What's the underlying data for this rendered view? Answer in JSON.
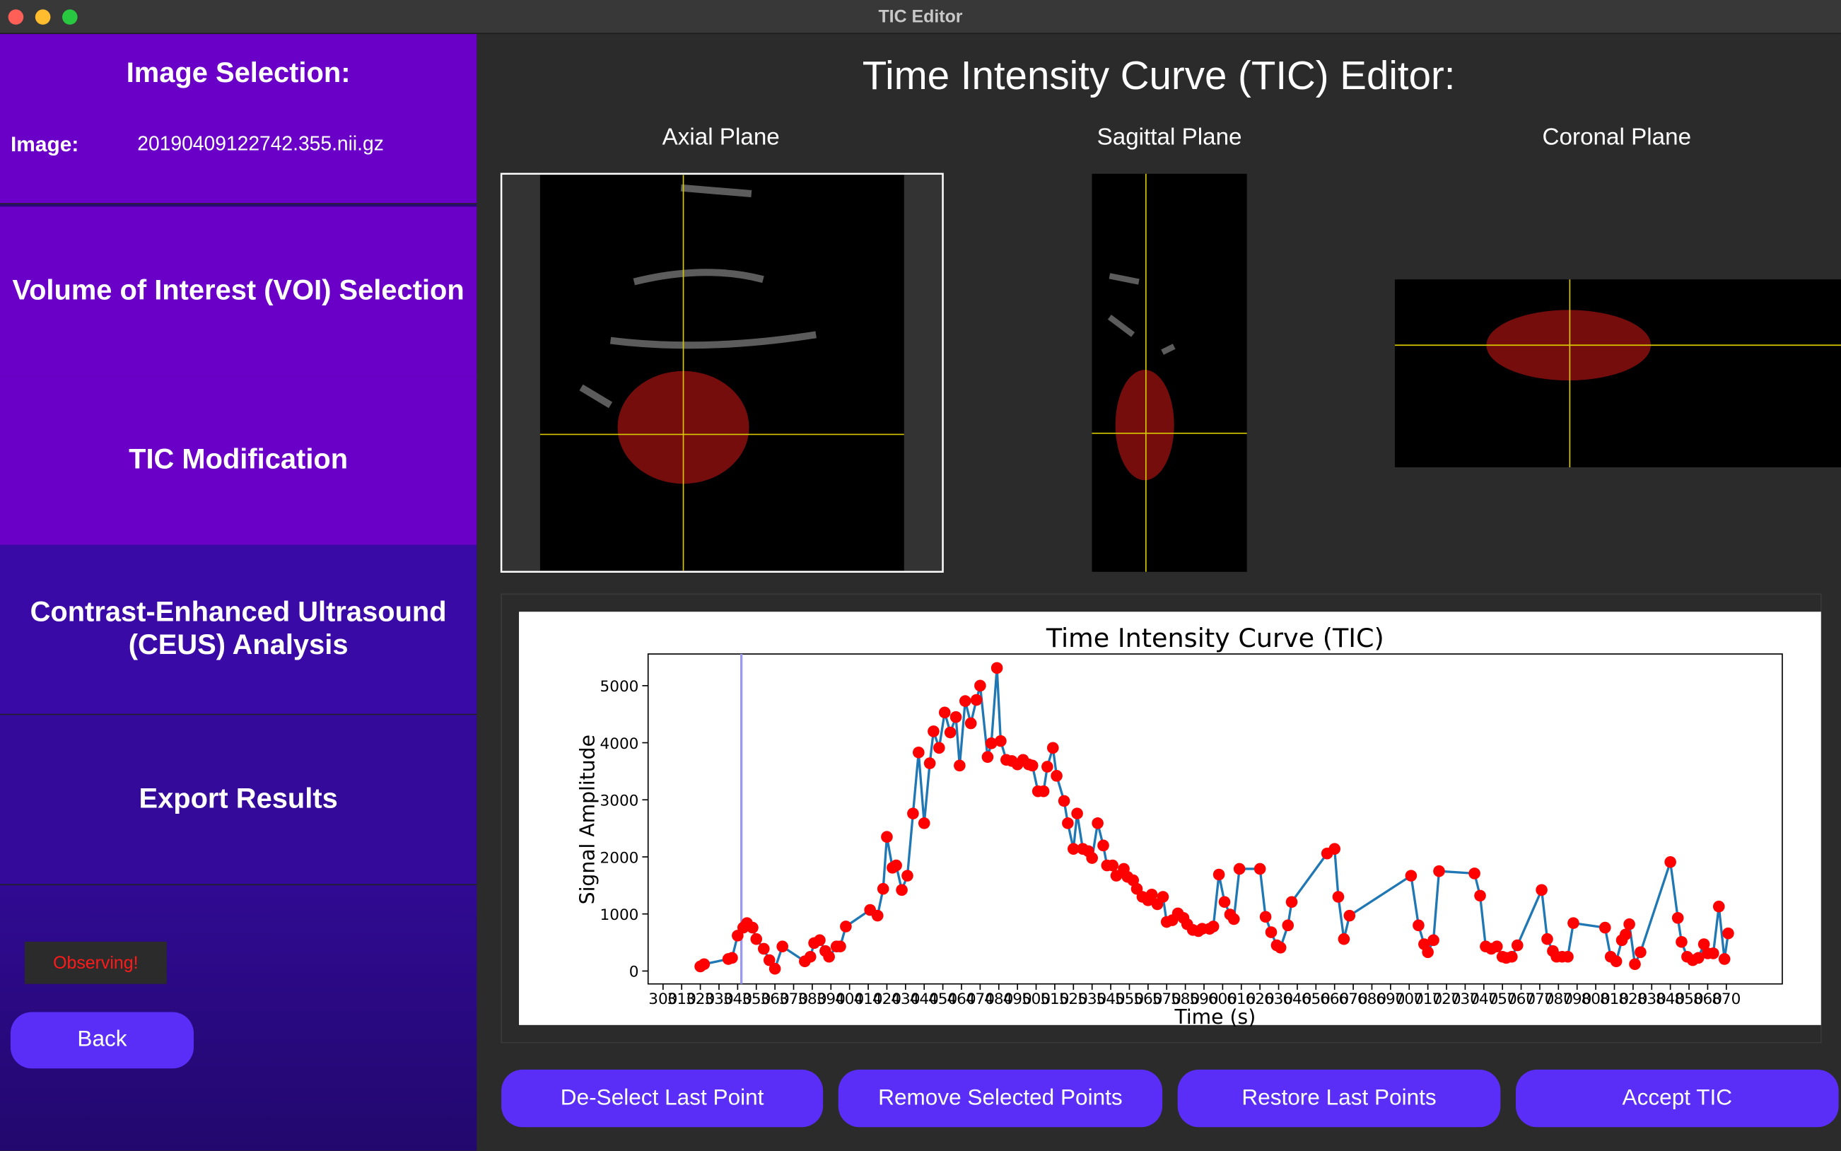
{
  "window_title": "TIC Editor",
  "sidebar": {
    "heading": "Image Selection:",
    "image_label": "Image:",
    "image_name": "20190409122742.355.nii.gz",
    "nav": [
      "Volume of Interest (VOI) Selection",
      "TIC Modification",
      "Contrast-Enhanced Ultrasound (CEUS) Analysis",
      "Export Results"
    ],
    "status": "Observing!",
    "back": "Back"
  },
  "main": {
    "title": "Time Intensity Curve (TIC) Editor:",
    "planes": [
      "Axial Plane",
      "Sagittal Plane",
      "Coronal Plane"
    ]
  },
  "chart_data": {
    "type": "line",
    "title": "Time Intensity Curve (TIC)",
    "x_label": "Time (s)",
    "y_label": "Signal Amplitude",
    "color": "#1f77b4",
    "marker_color": "#ff0000",
    "selection_color": "#9a9af0",
    "selection_x": 342,
    "x": [
      320,
      322,
      335,
      337,
      340,
      343,
      345,
      348,
      350,
      354,
      357,
      360,
      364,
      376,
      379,
      381,
      384,
      387,
      389,
      393,
      395,
      398,
      411,
      415,
      418,
      420,
      423,
      425,
      428,
      431,
      434,
      437,
      440,
      443,
      445,
      448,
      451,
      454,
      457,
      459,
      462,
      465,
      468,
      470,
      474,
      476,
      479,
      481,
      484,
      487,
      490,
      493,
      496,
      498,
      501,
      504,
      506,
      509,
      511,
      515,
      517,
      520,
      522,
      525,
      528,
      530,
      533,
      536,
      538,
      541,
      543,
      547,
      549,
      552,
      554,
      557,
      560,
      562,
      565,
      568,
      570,
      573,
      576,
      579,
      581,
      584,
      587,
      589,
      593,
      595,
      598,
      601,
      604,
      606,
      609,
      620,
      623,
      626,
      629,
      631,
      635,
      637,
      656,
      660,
      662,
      665,
      668,
      701,
      705,
      708,
      710,
      713,
      716,
      735,
      738,
      741,
      744,
      747,
      750,
      752,
      755,
      758,
      771,
      774,
      777,
      779,
      782,
      785,
      788,
      805,
      808,
      811,
      814,
      816,
      818,
      821,
      824,
      840,
      844,
      846,
      849,
      852,
      855,
      858,
      860,
      863,
      866,
      869,
      871
    ],
    "values": [
      80,
      120,
      210,
      230,
      620,
      760,
      840,
      760,
      560,
      390,
      190,
      40,
      430,
      170,
      250,
      490,
      540,
      350,
      250,
      430,
      430,
      780,
      1070,
      970,
      1440,
      2350,
      1810,
      1850,
      1420,
      1670,
      2760,
      3830,
      2590,
      3640,
      4200,
      3910,
      4530,
      4180,
      4450,
      3600,
      4730,
      4340,
      4750,
      5000,
      3750,
      3990,
      5310,
      4030,
      3700,
      3680,
      3620,
      3700,
      3620,
      3600,
      3150,
      3150,
      3580,
      3910,
      3420,
      2980,
      2590,
      2140,
      2760,
      2140,
      2100,
      1980,
      2590,
      2200,
      1850,
      1850,
      1670,
      1790,
      1650,
      1590,
      1440,
      1300,
      1240,
      1340,
      1170,
      1300,
      860,
      890,
      1010,
      930,
      820,
      720,
      700,
      740,
      740,
      780,
      1690,
      1210,
      990,
      910,
      1790,
      1790,
      950,
      680,
      450,
      410,
      800,
      1210,
      2060,
      2140,
      1300,
      560,
      970,
      1670,
      800,
      470,
      330,
      540,
      1750,
      1710,
      1320,
      430,
      390,
      430,
      250,
      230,
      250,
      450,
      1420,
      560,
      350,
      250,
      250,
      250,
      840,
      760,
      250,
      170,
      540,
      640,
      820,
      120,
      330,
      1910,
      930,
      510,
      250,
      190,
      230,
      470,
      310,
      310,
      1130,
      210,
      660
    ],
    "xlim": [
      292,
      900
    ],
    "ylim": [
      -226,
      5555
    ],
    "xticks": [
      300,
      310,
      320,
      330,
      340,
      350,
      360,
      370,
      380,
      390,
      400,
      410,
      420,
      430,
      440,
      450,
      460,
      470,
      480,
      490,
      500,
      510,
      520,
      530,
      540,
      550,
      560,
      570,
      580,
      590,
      600,
      610,
      620,
      630,
      640,
      650,
      660,
      670,
      680,
      690,
      700,
      710,
      720,
      730,
      740,
      750,
      760,
      770,
      780,
      790,
      800,
      810,
      820,
      830,
      840,
      850,
      860,
      870
    ],
    "yticks": [
      0,
      1000,
      2000,
      3000,
      4000,
      5000
    ]
  },
  "buttons": [
    "De-Select Last Point",
    "Remove Selected Points",
    "Restore Last Points",
    "Accept TIC"
  ]
}
